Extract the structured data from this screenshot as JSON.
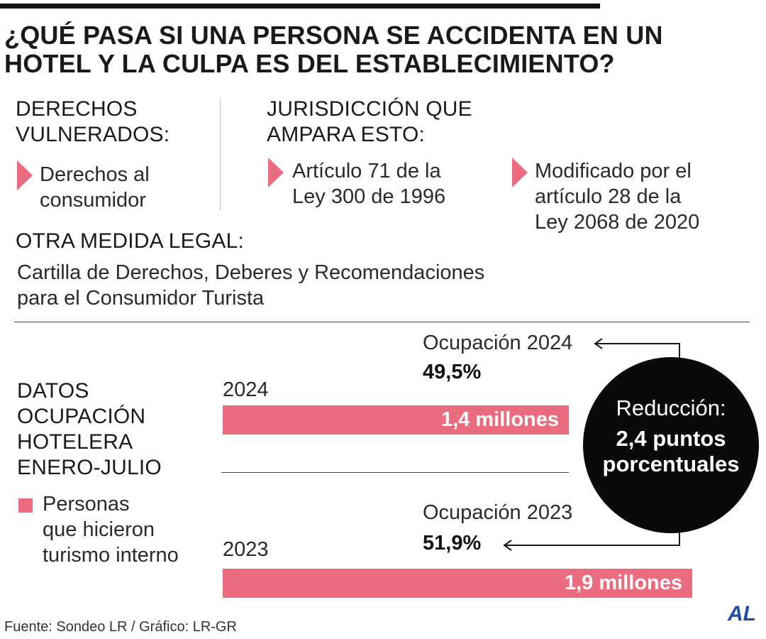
{
  "title": "¿QUÉ PASA SI UNA PERSONA SE ACCIDENTA EN UN HOTEL Y LA CULPA ES DEL ESTABLECIMIENTO?",
  "rights": {
    "heading_line1": "DERECHOS",
    "heading_line2": "VULNERADOS:",
    "items": [
      {
        "line1": "Derechos al",
        "line2": "consumidor"
      }
    ]
  },
  "jurisdiction": {
    "heading_line1": "JURISDICCIÓN QUE",
    "heading_line2": "AMPARA ESTO:",
    "items": [
      {
        "line1": "Artículo 71 de la",
        "line2": "Ley 300 de 1996"
      },
      {
        "line1": "Modificado por el",
        "line2": "artículo 28 de la",
        "line3": "Ley 2068 de 2020"
      }
    ]
  },
  "other_measure": {
    "heading": "OTRA MEDIDA LEGAL:",
    "line1": "Cartilla de Derechos, Deberes y Recomendaciones",
    "line2": "para el Consumidor Turista"
  },
  "chart_title": {
    "line1": "DATOS",
    "line2": "OCUPACIÓN",
    "line3": "HOTELERA",
    "line4": "ENERO-JULIO"
  },
  "legend": {
    "line1": "Personas",
    "line2": "que hicieron",
    "line3": "turismo interno",
    "color": "#ec6c7f"
  },
  "occupancy": {
    "y2024_label": "Ocupación 2024",
    "y2024_value": "49,5%",
    "y2023_label": "Ocupación 2023",
    "y2023_value": "51,9%"
  },
  "reduction": {
    "label": "Reducción:",
    "value_line1": "2,4 puntos",
    "value_line2": "porcentuales"
  },
  "chart_data": {
    "type": "bar",
    "orientation": "horizontal",
    "categories": [
      "2024",
      "2023"
    ],
    "series": [
      {
        "name": "Personas que hicieron turismo interno",
        "values": [
          1.4,
          1.9
        ],
        "labels": [
          "1,4 millones",
          "1,9 millones"
        ]
      }
    ],
    "xlim": [
      0,
      1.9
    ],
    "grid": false,
    "bar_color": "#ec6c7f"
  },
  "source": "Fuente: Sondeo LR / Gráfico: LR-GR",
  "logo": "AL"
}
